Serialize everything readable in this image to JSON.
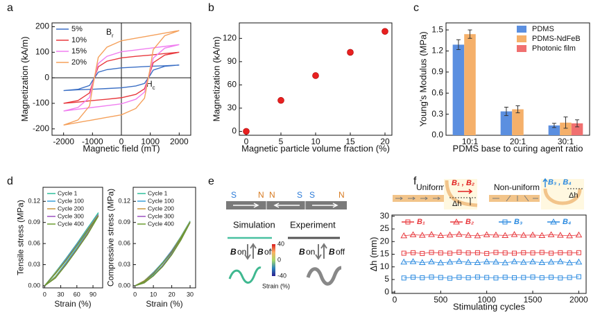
{
  "panel_labels": [
    "a",
    "b",
    "c",
    "d",
    "e",
    "f"
  ],
  "panel_e": {
    "poles": [
      "S",
      "N",
      "N",
      "S",
      "S",
      "N"
    ],
    "simulation": "Simulation",
    "experiment": "Experiment",
    "field_symbol": "B",
    "on": "on",
    "off": "off",
    "colorbar_ticks": [
      40,
      0,
      -40
    ],
    "colorbar_label": "Strain (%)"
  },
  "panel_f_diagram": {
    "uniform": "Uniform",
    "nonuniform": "Non-uniform",
    "field_a": "B₁ , B₂",
    "field_b": "B₃ , B₄",
    "dh": "Δh"
  },
  "chart_data": [
    {
      "type": "line",
      "xlabel": "Magnetic field (mT)",
      "ylabel": "Magnetization (kA/m)",
      "origin_axes": true,
      "legend": "upper left",
      "xlim": [
        -2400,
        2400
      ],
      "ylim": [
        -225,
        215
      ],
      "xticks": [
        -2000,
        -1000,
        0,
        1000,
        2000
      ],
      "yticks": [
        -200,
        -100,
        0,
        100,
        200
      ],
      "annotations": [
        {
          "text": "B",
          "sub": "r"
        },
        {
          "text": "H",
          "sub": "c"
        }
      ],
      "x": [
        2000,
        1500,
        1000,
        500,
        0,
        -500,
        -800,
        -900,
        -1000,
        -1100,
        -1500,
        -2000,
        -1500,
        -1000,
        -500,
        0,
        500,
        800,
        900,
        1000,
        1100,
        1500,
        2000
      ],
      "series": [
        {
          "name": "5%",
          "color": "#3b6fc5",
          "values": [
            50,
            47,
            45,
            42,
            39,
            32,
            22,
            5,
            -11,
            -30,
            -45,
            -50,
            -47,
            -45,
            -42,
            -39,
            -32,
            -22,
            -5,
            11,
            30,
            45,
            50
          ]
        },
        {
          "name": "10%",
          "color": "#e8383d",
          "values": [
            100,
            95,
            89,
            84,
            78,
            65,
            43,
            11,
            -22,
            -59,
            -89,
            -100,
            -95,
            -89,
            -84,
            -78,
            -65,
            -43,
            -11,
            22,
            59,
            89,
            100
          ]
        },
        {
          "name": "15%",
          "color": "#f07ef0",
          "values": [
            130,
            123,
            116,
            109,
            102,
            84,
            56,
            14,
            -28,
            -77,
            -116,
            -130,
            -123,
            -116,
            -109,
            -102,
            -84,
            -56,
            -14,
            28,
            77,
            116,
            130
          ]
        },
        {
          "name": "20%",
          "color": "#f5a05a",
          "values": [
            185,
            175,
            165,
            155,
            145,
            120,
            80,
            20,
            -40,
            -110,
            -165,
            -185,
            -175,
            -165,
            -155,
            -145,
            -120,
            -80,
            -20,
            40,
            110,
            165,
            185
          ]
        }
      ]
    },
    {
      "type": "scatter",
      "xlabel": "Magnetic particle volume fraction (%)",
      "ylabel": "Magnetization (kA/m)",
      "color": "#e82020",
      "xlim": [
        -1,
        21
      ],
      "ylim": [
        -5,
        140
      ],
      "xticks": [
        0,
        5,
        10,
        15,
        20
      ],
      "yticks": [
        0,
        30,
        60,
        90,
        120
      ],
      "x": [
        0,
        5,
        10,
        15,
        20
      ],
      "values": [
        0,
        40,
        72,
        102,
        129
      ]
    },
    {
      "type": "bar",
      "xlabel": "PDMS base to curing agent ratio",
      "ylabel": "Young's Modulus  (MPa)",
      "legend": "upper right",
      "ylim": [
        0,
        1.6
      ],
      "yticks": [
        {
          "value": 0,
          "label": "0.0"
        },
        0.3,
        0.6,
        0.9,
        1.2,
        1.5
      ],
      "categories": [
        "10:1",
        "20:1",
        "30:1"
      ],
      "series": [
        {
          "name": "PDMS",
          "color": "#5b8fe0",
          "values": [
            1.29,
            0.34,
            0.14
          ],
          "errors": [
            0.07,
            0.06,
            0.03
          ]
        },
        {
          "name": "PDMS-NdFeB",
          "color": "#f5b06a",
          "values": [
            1.44,
            0.37,
            0.18
          ],
          "errors": [
            0.06,
            0.05,
            0.08
          ]
        },
        {
          "name": "Photonic film",
          "color": "#f07070",
          "values": [
            null,
            null,
            0.17
          ],
          "errors": [
            null,
            null,
            0.05
          ]
        }
      ]
    },
    {
      "type": "line",
      "xlabel": "Strain (%)",
      "ylabel": "Tensile stress (MPa)",
      "legend": "upper left",
      "xlim": [
        -3,
        108
      ],
      "ylim": [
        -0.003,
        0.14
      ],
      "xticks": [
        0,
        30,
        60,
        90
      ],
      "yticks": [
        {
          "value": 0,
          "label": "0.00"
        },
        0.03,
        0.06,
        0.09,
        0.12
      ],
      "x": [
        0,
        20,
        40,
        60,
        80,
        100,
        80,
        60,
        40,
        20,
        0
      ],
      "series": [
        {
          "name": "Cycle 1",
          "color": "#2fbf9a",
          "values": [
            0,
            0.019,
            0.039,
            0.06,
            0.082,
            0.104,
            0.077,
            0.054,
            0.033,
            0.013,
            0
          ]
        },
        {
          "name": "Cycle 100",
          "color": "#3aa0d8",
          "values": [
            0,
            0.018,
            0.038,
            0.059,
            0.081,
            0.102,
            0.076,
            0.053,
            0.032,
            0.012,
            0
          ]
        },
        {
          "name": "Cycle 200",
          "color": "#c8963a",
          "values": [
            0,
            0.018,
            0.037,
            0.058,
            0.08,
            0.101,
            0.075,
            0.052,
            0.031,
            0.012,
            0
          ]
        },
        {
          "name": "Cycle 300",
          "color": "#9b50c0",
          "values": [
            0,
            0.017,
            0.037,
            0.058,
            0.079,
            0.1,
            0.074,
            0.052,
            0.031,
            0.011,
            0
          ]
        },
        {
          "name": "Cycle 400",
          "color": "#6a9a30",
          "values": [
            0,
            0.017,
            0.036,
            0.057,
            0.079,
            0.099,
            0.073,
            0.051,
            0.03,
            0.011,
            0
          ]
        }
      ]
    },
    {
      "type": "line",
      "xlabel": "Strain (%)",
      "ylabel": "Compressive stress (MPa)",
      "legend": "upper left",
      "xlim": [
        -1,
        33
      ],
      "ylim": [
        -0.003,
        0.14
      ],
      "xticks": [
        0,
        10,
        20,
        30
      ],
      "yticks": [
        {
          "value": 0,
          "label": "0.00"
        },
        0.03,
        0.06,
        0.09,
        0.12
      ],
      "x": [
        0,
        5,
        10,
        15,
        20,
        25,
        30,
        25,
        20,
        15,
        10,
        5,
        0
      ],
      "series": [
        {
          "name": "Cycle 1",
          "color": "#2fbf9a",
          "values": [
            0,
            0.007,
            0.019,
            0.033,
            0.05,
            0.07,
            0.092,
            0.067,
            0.046,
            0.029,
            0.015,
            0.005,
            0
          ]
        },
        {
          "name": "Cycle 100",
          "color": "#3aa0d8",
          "values": [
            0,
            0.007,
            0.018,
            0.033,
            0.05,
            0.069,
            0.091,
            0.066,
            0.046,
            0.028,
            0.015,
            0.005,
            0
          ]
        },
        {
          "name": "Cycle 200",
          "color": "#c8963a",
          "values": [
            0,
            0.007,
            0.018,
            0.032,
            0.049,
            0.069,
            0.091,
            0.066,
            0.045,
            0.028,
            0.014,
            0.005,
            0
          ]
        },
        {
          "name": "Cycle 300",
          "color": "#9b50c0",
          "values": [
            0,
            0.006,
            0.018,
            0.032,
            0.049,
            0.068,
            0.09,
            0.065,
            0.045,
            0.028,
            0.014,
            0.004,
            0
          ]
        },
        {
          "name": "Cycle 400",
          "color": "#6a9a30",
          "values": [
            0,
            0.006,
            0.017,
            0.032,
            0.048,
            0.068,
            0.09,
            0.065,
            0.044,
            0.027,
            0.014,
            0.004,
            0
          ]
        }
      ]
    },
    {
      "type": "line",
      "xlabel": "Stimulating cycles",
      "ylabel": "Δh (mm)",
      "legend": "top",
      "markers": true,
      "xlim": [
        -30,
        2080
      ],
      "ylim": [
        -0.5,
        30.5
      ],
      "xticks": [
        0,
        500,
        1000,
        1500,
        2000
      ],
      "yticks": [
        0,
        5,
        10,
        15,
        20,
        25,
        30
      ],
      "x": [
        100,
        200,
        300,
        400,
        500,
        600,
        700,
        800,
        900,
        1000,
        1100,
        1200,
        1300,
        1400,
        1500,
        1600,
        1700,
        1800,
        1900,
        2000
      ],
      "series": [
        {
          "name": "B₁",
          "color": "#e8383d",
          "marker": "square",
          "values": [
            15.4,
            15.6,
            15.3,
            15.7,
            15.5,
            15.4,
            15.8,
            15.5,
            15.6,
            15.3,
            15.7,
            15.5,
            15.4,
            15.6,
            15.5,
            15.7,
            15.4,
            15.6,
            15.5,
            15.6
          ]
        },
        {
          "name": "B₂",
          "color": "#e8383d",
          "marker": "triangle",
          "values": [
            22.3,
            22.7,
            22.5,
            22.8,
            22.4,
            22.6,
            22.9,
            22.5,
            22.3,
            22.7,
            22.6,
            22.4,
            22.8,
            22.5,
            22.6,
            22.4,
            22.7,
            22.5,
            22.3,
            22.6
          ]
        },
        {
          "name": "B₃",
          "color": "#2a8ae0",
          "marker": "square",
          "values": [
            5.6,
            5.9,
            5.7,
            6.0,
            5.8,
            5.5,
            5.9,
            5.7,
            6.0,
            5.8,
            5.6,
            5.9,
            5.7,
            5.8,
            6.0,
            5.7,
            5.9,
            5.6,
            5.8,
            6.1
          ]
        },
        {
          "name": "B₄",
          "color": "#2a8ae0",
          "marker": "triangle",
          "values": [
            11.9,
            12.1,
            11.7,
            12.0,
            11.6,
            11.9,
            12.2,
            11.8,
            11.7,
            12.0,
            11.9,
            11.6,
            12.1,
            11.8,
            12.0,
            11.7,
            11.9,
            12.1,
            11.6,
            11.9
          ]
        }
      ]
    }
  ]
}
